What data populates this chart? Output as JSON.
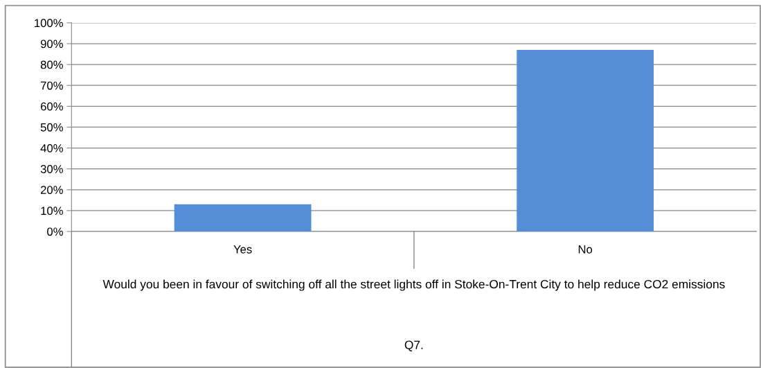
{
  "chart_data": {
    "type": "bar",
    "categories": [
      "Yes",
      "No"
    ],
    "values": [
      13,
      87
    ],
    "color": "#558ed5",
    "xlabel": "Would you been in favour of switching off all the street lights off in Stoke-On-Trent City to help reduce CO2 emissions",
    "annotations": [
      "Q7."
    ],
    "ylim": [
      0,
      100
    ],
    "yticks": [
      {
        "value": 0,
        "label": "0%"
      },
      {
        "value": 10,
        "label": "10%"
      },
      {
        "value": 20,
        "label": "20%"
      },
      {
        "value": 30,
        "label": "30%"
      },
      {
        "value": 40,
        "label": "40%"
      },
      {
        "value": 50,
        "label": "50%"
      },
      {
        "value": 60,
        "label": "60%"
      },
      {
        "value": 70,
        "label": "70%"
      },
      {
        "value": 80,
        "label": "80%"
      },
      {
        "value": 90,
        "label": "90%"
      },
      {
        "value": 100,
        "label": "100%"
      }
    ],
    "grid": "y"
  }
}
